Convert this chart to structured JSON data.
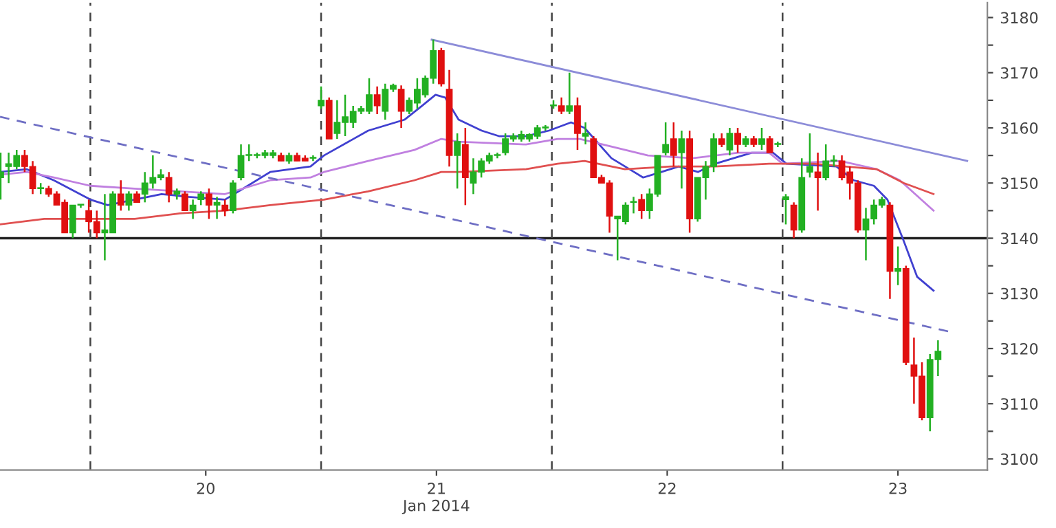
{
  "chart_data": {
    "type": "candlestick",
    "x": [
      "2014-01-19T14:40",
      "2014-01-19T15:30",
      "2014-01-19T16:20",
      "2014-01-19T17:10",
      "2014-01-19T18:00",
      "2014-01-19T18:50",
      "2014-01-19T19:40",
      "2014-01-19T20:30",
      "2014-01-19T21:20",
      "2014-01-19T22:10",
      "2014-01-19T23:00",
      "2014-01-19T23:50",
      "2014-01-20T00:40",
      "2014-01-20T01:30",
      "2014-01-20T02:20",
      "2014-01-20T03:10",
      "2014-01-20T04:00",
      "2014-01-20T04:50",
      "2014-01-20T05:40",
      "2014-01-20T06:30",
      "2014-01-20T07:20",
      "2014-01-20T08:10",
      "2014-01-20T09:00",
      "2014-01-20T09:50",
      "2014-01-20T10:40",
      "2014-01-20T11:30",
      "2014-01-20T12:20",
      "2014-01-20T13:10",
      "2014-01-20T14:00",
      "2014-01-20T14:50",
      "2014-01-20T15:40",
      "2014-01-20T16:30",
      "2014-01-20T17:20",
      "2014-01-20T18:10",
      "2014-01-20T19:00",
      "2014-01-20T19:50",
      "2014-01-20T20:40",
      "2014-01-20T21:30",
      "2014-01-20T22:20",
      "2014-01-20T23:10",
      "2014-01-21T00:00",
      "2014-01-21T00:50",
      "2014-01-21T01:40",
      "2014-01-21T02:30",
      "2014-01-21T03:20",
      "2014-01-21T04:10",
      "2014-01-21T05:00",
      "2014-01-21T05:50",
      "2014-01-21T06:40",
      "2014-01-21T07:30",
      "2014-01-21T08:20",
      "2014-01-21T09:10",
      "2014-01-21T10:00",
      "2014-01-21T10:50",
      "2014-01-21T11:40",
      "2014-01-21T12:30",
      "2014-01-21T13:20",
      "2014-01-21T14:10",
      "2014-01-21T15:00",
      "2014-01-21T15:50",
      "2014-01-21T16:40",
      "2014-01-21T17:30",
      "2014-01-21T18:20",
      "2014-01-21T19:10",
      "2014-01-21T20:00",
      "2014-01-21T20:50",
      "2014-01-21T21:40",
      "2014-01-21T22:30",
      "2014-01-21T23:20",
      "2014-01-22T00:10",
      "2014-01-22T01:00",
      "2014-01-22T01:50",
      "2014-01-22T02:40",
      "2014-01-22T03:30",
      "2014-01-22T04:20",
      "2014-01-22T05:10",
      "2014-01-22T06:00",
      "2014-01-22T06:50",
      "2014-01-22T07:40",
      "2014-01-22T08:30",
      "2014-01-22T09:20",
      "2014-01-22T10:10",
      "2014-01-22T11:00",
      "2014-01-22T11:50",
      "2014-01-22T12:40",
      "2014-01-22T13:30",
      "2014-01-22T14:20",
      "2014-01-22T15:10",
      "2014-01-22T16:00",
      "2014-01-22T16:50",
      "2014-01-22T17:40",
      "2014-01-22T18:30",
      "2014-01-22T19:20",
      "2014-01-22T20:10",
      "2014-01-22T21:00",
      "2014-01-22T21:50",
      "2014-01-22T22:40",
      "2014-01-22T23:30",
      "2014-01-23T00:20",
      "2014-01-23T01:10",
      "2014-01-23T02:00",
      "2014-01-23T02:50",
      "2014-01-23T03:40",
      "2014-01-23T04:30",
      "2014-01-23T05:20",
      "2014-01-23T06:10",
      "2014-01-23T07:00",
      "2014-01-23T07:50",
      "2014-01-23T08:40",
      "2014-01-23T09:30",
      "2014-01-23T10:20",
      "2014-01-23T11:10",
      "2014-01-23T12:00",
      "2014-01-23T12:50",
      "2014-01-23T13:40",
      "2014-01-23T14:30",
      "2014-01-23T15:20",
      "2014-01-23T16:10"
    ],
    "ohlc": [
      [
        3151,
        3155.5,
        3147,
        3152
      ],
      [
        3153,
        3155.5,
        3150,
        3153.5
      ],
      [
        3153,
        3156,
        3152.5,
        3155
      ],
      [
        3155,
        3156,
        3152,
        3153
      ],
      [
        3153,
        3154,
        3148,
        3149
      ],
      [
        3149,
        3150,
        3148,
        3149
      ],
      [
        3149,
        3149.5,
        3147.5,
        3148
      ],
      [
        3148,
        3148.5,
        3146,
        3146
      ],
      [
        3146.5,
        3147,
        3141,
        3141
      ],
      [
        3141,
        3146,
        3140,
        3146
      ],
      [
        3146,
        3146,
        3145.5,
        3146
      ],
      [
        3145,
        3147,
        3141,
        3143
      ],
      [
        3143,
        3145,
        3140,
        3141
      ],
      [
        3141,
        3148,
        3136,
        3141.5
      ],
      [
        3141,
        3148.5,
        3141,
        3148
      ],
      [
        3148,
        3150.5,
        3145,
        3146
      ],
      [
        3146,
        3148.5,
        3145,
        3148
      ],
      [
        3148,
        3148.5,
        3146.5,
        3146.5
      ],
      [
        3148,
        3152,
        3146.5,
        3150
      ],
      [
        3150,
        3155,
        3149,
        3151
      ],
      [
        3151,
        3152.5,
        3150.5,
        3151.5
      ],
      [
        3151,
        3152,
        3146.5,
        3148
      ],
      [
        3148,
        3149,
        3147,
        3148.5
      ],
      [
        3148,
        3148.5,
        3145,
        3145
      ],
      [
        3145,
        3147,
        3143.5,
        3146
      ],
      [
        3147,
        3148.5,
        3146,
        3148
      ],
      [
        3148,
        3149,
        3143.5,
        3146
      ],
      [
        3146,
        3147.5,
        3143.5,
        3146.5
      ],
      [
        3146,
        3147,
        3144,
        3145
      ],
      [
        3145,
        3150.5,
        3144.5,
        3150
      ],
      [
        3151,
        3157,
        3150.5,
        3155
      ],
      [
        3155,
        3157,
        3154,
        3155
      ],
      [
        3155,
        3155.5,
        3154.5,
        3155
      ],
      [
        3155,
        3156,
        3154.5,
        3155.5
      ],
      [
        3155,
        3156,
        3154.5,
        3155.5
      ],
      [
        3155,
        3155.5,
        3154,
        3154
      ],
      [
        3154,
        3155.5,
        3153.5,
        3155
      ],
      [
        3155,
        3155.5,
        3154,
        3154
      ],
      [
        3154.5,
        3155,
        3154,
        3154
      ],
      [
        3154.5,
        3155,
        3154,
        3154.5
      ],
      [
        3164,
        3167.5,
        3163.5,
        3165
      ],
      [
        3165,
        3165.5,
        3158,
        3158
      ],
      [
        3159,
        3165,
        3158,
        3161
      ],
      [
        3161,
        3166,
        3158.5,
        3162
      ],
      [
        3161,
        3164,
        3160,
        3163
      ],
      [
        3163,
        3164,
        3162.5,
        3163.5
      ],
      [
        3163,
        3169,
        3162.5,
        3166
      ],
      [
        3166,
        3167.5,
        3162.5,
        3164
      ],
      [
        3163,
        3168,
        3161.5,
        3167
      ],
      [
        3167,
        3168,
        3166.5,
        3167.7
      ],
      [
        3167,
        3167.7,
        3160,
        3163
      ],
      [
        3163,
        3165.5,
        3162.5,
        3165
      ],
      [
        3164.5,
        3169,
        3163.5,
        3167
      ],
      [
        3166,
        3169.5,
        3165.5,
        3169
      ],
      [
        3169,
        3176,
        3168,
        3174
      ],
      [
        3174,
        3174.5,
        3167.5,
        3168
      ],
      [
        3167,
        3170.5,
        3153,
        3155
      ],
      [
        3155,
        3159,
        3149,
        3157.5
      ],
      [
        3157,
        3160,
        3146,
        3151
      ],
      [
        3150,
        3154.5,
        3148,
        3152
      ],
      [
        3152,
        3154.5,
        3151,
        3154
      ],
      [
        3154,
        3155.5,
        3153.5,
        3155
      ],
      [
        3155,
        3155.5,
        3154.5,
        3155
      ],
      [
        3155.5,
        3159,
        3155,
        3158
      ],
      [
        3158,
        3159,
        3157.5,
        3158.5
      ],
      [
        3158,
        3159.5,
        3157.5,
        3158.8
      ],
      [
        3158,
        3159,
        3157.5,
        3158.8
      ],
      [
        3158.5,
        3160.5,
        3158,
        3160
      ],
      [
        3160,
        3160.5,
        3159.5,
        3160
      ],
      [
        3164,
        3165,
        3163.5,
        3164
      ],
      [
        3164,
        3165.5,
        3162.5,
        3163
      ],
      [
        3163,
        3170,
        3162.5,
        3164
      ],
      [
        3164,
        3165.5,
        3156,
        3159
      ],
      [
        3158.5,
        3161,
        3157,
        3159
      ],
      [
        3158,
        3158.5,
        3151,
        3151
      ],
      [
        3151,
        3151.5,
        3150,
        3150
      ],
      [
        3150,
        3150.5,
        3141,
        3144
      ],
      [
        3143.5,
        3144,
        3136,
        3144
      ],
      [
        3143,
        3146.5,
        3142.5,
        3146
      ],
      [
        3146.5,
        3147.5,
        3144.5,
        3146.5
      ],
      [
        3147,
        3148,
        3143.5,
        3145
      ],
      [
        3145,
        3149,
        3143.5,
        3148
      ],
      [
        3148,
        3155,
        3147.5,
        3155
      ],
      [
        3155.5,
        3161,
        3155,
        3157
      ],
      [
        3158,
        3161,
        3153,
        3155
      ],
      [
        3155.5,
        3159.5,
        3149,
        3158
      ],
      [
        3158,
        3159.5,
        3141,
        3143.5
      ],
      [
        3143.5,
        3151,
        3143,
        3151
      ],
      [
        3151,
        3154,
        3147,
        3153
      ],
      [
        3153,
        3159,
        3152,
        3158
      ],
      [
        3158,
        3159,
        3156.5,
        3157
      ],
      [
        3156,
        3160,
        3155,
        3159
      ],
      [
        3159,
        3160,
        3155.5,
        3157
      ],
      [
        3157,
        3158.5,
        3156.5,
        3158
      ],
      [
        3158,
        3158.5,
        3156.5,
        3157
      ],
      [
        3157,
        3160,
        3156,
        3158
      ],
      [
        3158,
        3158.5,
        3155.5,
        3155.5
      ],
      [
        3157,
        3157.5,
        3156.5,
        3157
      ],
      [
        3147,
        3148,
        3142.5,
        3147.5
      ],
      [
        3146,
        3146.5,
        3140,
        3141.5
      ],
      [
        3141.5,
        3154.5,
        3141,
        3151
      ],
      [
        3152,
        3159,
        3151,
        3153
      ],
      [
        3152,
        3155.5,
        3145,
        3151
      ],
      [
        3151,
        3157,
        3150.5,
        3154
      ],
      [
        3154,
        3155,
        3153,
        3154
      ],
      [
        3154,
        3155,
        3150.5,
        3151
      ],
      [
        3152,
        3153,
        3147,
        3150
      ],
      [
        3150,
        3150.5,
        3141,
        3141.5
      ],
      [
        3141.5,
        3145.5,
        3136,
        3143.5
      ],
      [
        3143.5,
        3147,
        3142.5,
        3146
      ],
      [
        3146,
        3147.5,
        3145.5,
        3147
      ],
      [
        3146,
        3146.5,
        3129,
        3134
      ],
      [
        3134,
        3138.5,
        3131.5,
        3134.5
      ],
      [
        3134.5,
        3135,
        3117,
        3117.5
      ],
      [
        3117,
        3122,
        3110,
        3115
      ],
      [
        3115,
        3117.5,
        3107,
        3107.5
      ],
      [
        3107.5,
        3119,
        3105,
        3118
      ],
      [
        3118,
        3121.5,
        3115,
        3119.5
      ]
    ],
    "colors": [
      "#22b022",
      "#22b022",
      "#22b022",
      "#e01010",
      "#e01010",
      "#22b022",
      "#e01010",
      "#e01010",
      "#e01010",
      "#22b022",
      "#22b022",
      "#e01010",
      "#e01010",
      "#22b022",
      "#22b022",
      "#e01010",
      "#22b022",
      "#e01010",
      "#22b022",
      "#22b022",
      "#22b022",
      "#e01010",
      "#22b022",
      "#e01010",
      "#22b022",
      "#22b022",
      "#e01010",
      "#22b022",
      "#e01010",
      "#22b022",
      "#22b022",
      "#22b022",
      "#22b022",
      "#22b022",
      "#22b022",
      "#e01010",
      "#22b022",
      "#e01010",
      "#e01010",
      "#22b022",
      "#22b022",
      "#e01010",
      "#22b022",
      "#22b022",
      "#22b022",
      "#22b022",
      "#22b022",
      "#e01010",
      "#22b022",
      "#22b022",
      "#e01010",
      "#22b022",
      "#22b022",
      "#22b022",
      "#22b022",
      "#e01010",
      "#e01010",
      "#22b022",
      "#e01010",
      "#22b022",
      "#22b022",
      "#22b022",
      "#22b022",
      "#22b022",
      "#22b022",
      "#22b022",
      "#22b022",
      "#22b022",
      "#22b022",
      "#22b022",
      "#e01010",
      "#22b022",
      "#e01010",
      "#22b022",
      "#e01010",
      "#e01010",
      "#e01010",
      "#22b022",
      "#22b022",
      "#22b022",
      "#e01010",
      "#22b022",
      "#22b022",
      "#22b022",
      "#e01010",
      "#22b022",
      "#e01010",
      "#22b022",
      "#22b022",
      "#22b022",
      "#e01010",
      "#22b022",
      "#e01010",
      "#22b022",
      "#e01010",
      "#22b022",
      "#e01010",
      "#22b022",
      "#22b022",
      "#e01010",
      "#22b022",
      "#22b022",
      "#e01010",
      "#22b022",
      "#22b022",
      "#e01010",
      "#e01010",
      "#e01010",
      "#22b022",
      "#22b022",
      "#22b022",
      "#e01010",
      "#22b022",
      "#e01010",
      "#e01010",
      "#e01010",
      "#22b022",
      "#22b022"
    ],
    "series": [
      {
        "type": "line",
        "color": "#4040d0",
        "x": [
          "2014-01-19T14:36",
          "2014-01-19T17:24",
          "2014-01-19T20:12",
          "2014-01-20T00:00",
          "2014-01-20T01:48",
          "2014-01-20T04:36",
          "2014-01-20T07:24",
          "2014-01-20T10:12",
          "2014-01-20T14:00",
          "2014-01-20T15:54",
          "2014-01-20T18:42",
          "2014-01-20T22:54",
          "2014-01-21T00:18",
          "2014-01-21T04:54",
          "2014-01-21T08:42",
          "2014-01-21T10:30",
          "2014-01-21T11:54",
          "2014-01-21T12:54",
          "2014-01-21T14:18",
          "2014-01-21T16:42",
          "2014-01-21T18:30",
          "2014-01-21T21:18",
          "2014-01-21T23:42",
          "2014-01-22T02:00",
          "2014-01-22T03:24",
          "2014-01-22T06:12",
          "2014-01-22T09:30",
          "2014-01-22T11:24",
          "2014-01-22T13:12",
          "2014-01-22T15:12",
          "2014-01-22T17:00",
          "2014-01-22T20:48",
          "2014-01-22T23:00",
          "2014-01-23T00:24",
          "2014-01-23T05:36",
          "2014-01-23T07:24",
          "2014-01-23T09:30",
          "2014-01-23T10:54",
          "2014-01-23T12:36",
          "2014-01-23T14:00",
          "2014-01-23T15:42"
        ],
        "values": [
          3152,
          3152.5,
          3150.5,
          3147,
          3146,
          3147,
          3148,
          3147.5,
          3147,
          3149,
          3152,
          3153,
          3155,
          3159.5,
          3161.5,
          3164,
          3166,
          3165.5,
          3161.5,
          3159.5,
          3158.5,
          3158.5,
          3159.5,
          3161,
          3160,
          3154.5,
          3151,
          3152,
          3153,
          3152,
          3153.5,
          3155.5,
          3155.5,
          3153.5,
          3153,
          3150.5,
          3149.5,
          3147,
          3139.5,
          3133,
          3130.5
        ]
      },
      {
        "type": "line",
        "color": "#c080e0",
        "x": [
          "2014-01-19T14:36",
          "2014-01-19T17:24",
          "2014-01-19T20:12",
          "2014-01-20T00:00",
          "2014-01-20T04:36",
          "2014-01-20T09:18",
          "2014-01-20T14:00",
          "2014-01-20T16:48",
          "2014-01-20T18:42",
          "2014-01-20T22:54",
          "2014-01-21T00:18",
          "2014-01-21T04:54",
          "2014-01-21T09:42",
          "2014-01-21T12:30",
          "2014-01-21T14:18",
          "2014-01-21T21:18",
          "2014-01-22T00:36",
          "2014-01-22T02:54",
          "2014-01-22T05:18",
          "2014-01-22T10:00",
          "2014-01-22T14:36",
          "2014-01-22T19:24",
          "2014-01-22T22:36",
          "2014-01-23T00:00",
          "2014-01-23T06:00",
          "2014-01-23T09:48",
          "2014-01-23T12:12",
          "2014-01-23T15:42"
        ],
        "values": [
          3151.5,
          3152,
          3151,
          3149.5,
          3149,
          3148.5,
          3148,
          3149.5,
          3150.5,
          3151,
          3152,
          3154,
          3156,
          3158,
          3157.5,
          3157,
          3158,
          3158,
          3157,
          3155,
          3154.5,
          3155.5,
          3155.5,
          3153.5,
          3154,
          3152.5,
          3150.5,
          3145
        ]
      },
      {
        "type": "line",
        "color": "#e05050",
        "x": [
          "2014-01-19T14:36",
          "2014-01-19T19:12",
          "2014-01-20T00:00",
          "2014-01-20T04:36",
          "2014-01-20T09:18",
          "2014-01-20T14:00",
          "2014-01-20T18:42",
          "2014-01-21T00:18",
          "2014-01-21T04:54",
          "2014-01-21T09:42",
          "2014-01-21T12:30",
          "2014-01-21T14:18",
          "2014-01-21T21:18",
          "2014-01-22T00:36",
          "2014-01-22T03:24",
          "2014-01-22T07:36",
          "2014-01-22T12:24",
          "2014-01-22T17:00",
          "2014-01-22T22:36",
          "2014-01-23T03:12",
          "2014-01-23T09:48",
          "2014-01-23T12:36",
          "2014-01-23T15:42"
        ],
        "values": [
          3142.5,
          3143.5,
          3143.5,
          3143.5,
          3144.5,
          3145,
          3146,
          3147,
          3148.5,
          3150.5,
          3152,
          3152,
          3152.5,
          3153.5,
          3154,
          3152.5,
          3153,
          3153,
          3153.5,
          3153.5,
          3152.5,
          3150,
          3148
        ]
      },
      {
        "type": "line",
        "color": "#6e6ec4",
        "line_style": "dashed",
        "x": [
          "2014-01-19T14:36",
          "2014-01-23T17:30"
        ],
        "values": [
          3162,
          3123
        ]
      },
      {
        "type": "line",
        "color": "#8c8cd8",
        "x": [
          "2014-01-21T11:30",
          "2014-01-23T19:12"
        ],
        "values": [
          3176,
          3154
        ]
      }
    ],
    "xlim": [
      "2014-01-19T14:36",
      "2014-01-23T21:18"
    ],
    "ylim": [
      3098,
      3182.7
    ],
    "xticks": [
      {
        "value": "2014-01-20T12:00",
        "label": "20"
      },
      {
        "value": "2014-01-21T12:00",
        "label": "21\nJan 2014"
      },
      {
        "value": "2014-01-22T12:00",
        "label": "22"
      },
      {
        "value": "2014-01-23T12:00",
        "label": "23"
      }
    ],
    "yticks": [
      3100,
      {
        "value": 3105,
        "label": null
      },
      3110,
      {
        "value": 3115,
        "label": null
      },
      3120,
      {
        "value": 3125,
        "label": null
      },
      3130,
      {
        "value": 3135,
        "label": null
      },
      3140,
      {
        "value": 3145,
        "label": null
      },
      3150,
      {
        "value": 3155,
        "label": null
      },
      3160,
      {
        "value": 3165,
        "label": null
      },
      3170,
      {
        "value": 3175,
        "label": null
      },
      3180
    ],
    "ref_lines": [
      {
        "axis": "y",
        "value": 3140,
        "color": "#222222",
        "line_style": "solid"
      },
      {
        "axis": "x",
        "value": "2014-01-20T00:00",
        "color": "#444444",
        "line_style": "dashed"
      },
      {
        "axis": "x",
        "value": "2014-01-21T00:00",
        "color": "#444444",
        "line_style": "dashed"
      },
      {
        "axis": "x",
        "value": "2014-01-22T00:00",
        "color": "#444444",
        "line_style": "dashed"
      },
      {
        "axis": "x",
        "value": "2014-01-23T00:00",
        "color": "#444444",
        "line_style": "dashed"
      }
    ],
    "grid": false,
    "legend": false
  }
}
